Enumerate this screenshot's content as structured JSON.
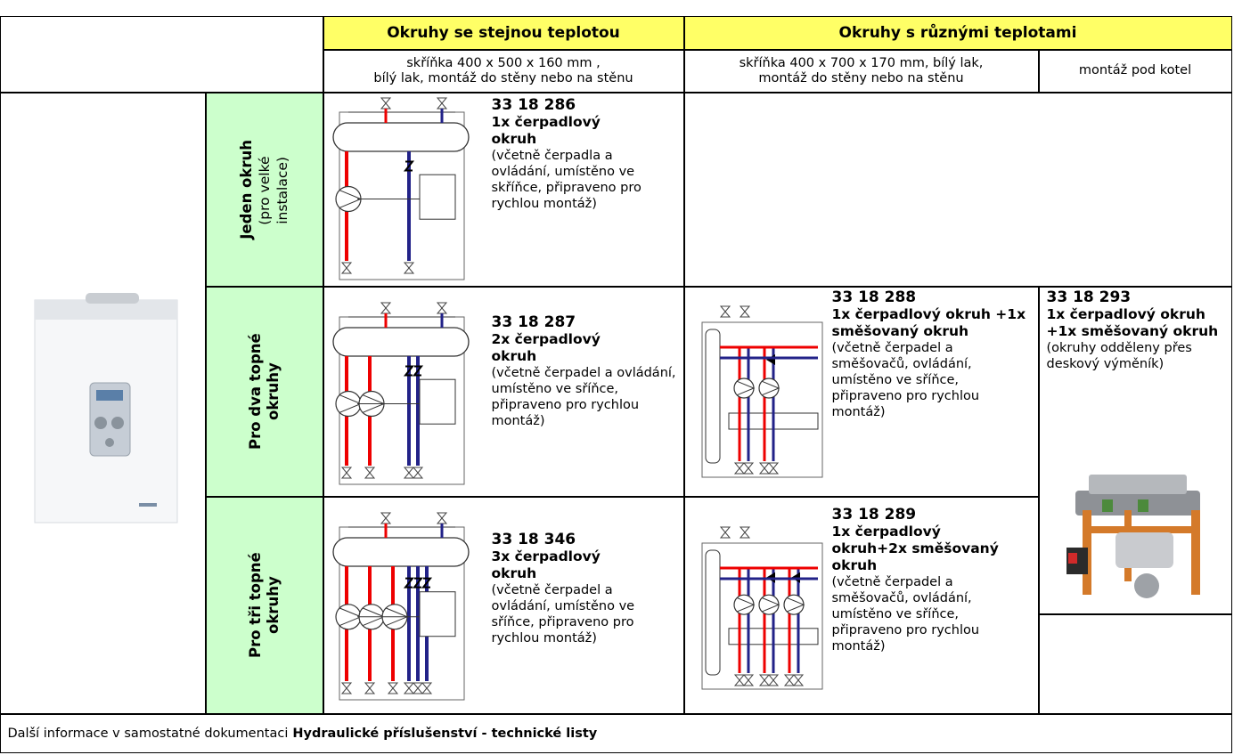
{
  "header": {
    "same_temp": "Okruhy se stejnou teplotou",
    "diff_temp": "Okruhy s různými teplotami",
    "same_temp_note": [
      "skříňka 400 x 500 x 160 mm ,",
      "bílý lak, montáž do stěny nebo na stěnu"
    ],
    "diff_temp_note": [
      "skříňka 400 x 700 x 170 mm, bílý lak,",
      "montáž do stěny nebo na stěnu"
    ],
    "under_boiler_note": "montáž pod kotel"
  },
  "rows": [
    {
      "label": "Jeden okruh",
      "label_note": "(pro velké instalace)",
      "same_temp": {
        "code": "33 18 286",
        "title": "1x čerpadlový okruh",
        "description": "(včetně čerpadla a ovládání, umístěno ve skříňce, připraveno pro rychlou montáž)"
      }
    },
    {
      "label": "Pro dva topné okruhy",
      "same_temp": {
        "code": "33 18 287",
        "title": "2x čerpadlový okruh",
        "description": "(včetně čerpadel a ovládání, umístěno ve sříňce, připraveno pro rychlou montáž)"
      },
      "diff_temp": {
        "code": "33 18 288",
        "title": "1x čerpadlový okruh +1x směšovaný okruh",
        "description": "(včetně čerpadel a směšovačů, ovládání, umístěno ve sříňce, připraveno pro rychlou montáž)"
      }
    },
    {
      "label": "Pro tři topné okruhy",
      "same_temp": {
        "code": "33 18 346",
        "title": "3x čerpadlový okruh",
        "description": "(včetně čerpadel a ovládání, umístěno ve sříňce, připraveno pro rychlou montáž)"
      },
      "diff_temp": {
        "code": "33 18 289",
        "title": "1x čerpadlový okruh+2x směšovaný okruh",
        "description": "(včetně čerpadel a směšovačů, ovládání, umístěno ve sříňce, připraveno pro rychlou montáž)"
      }
    }
  ],
  "under_boiler": {
    "code": "33 18 293",
    "title": "1x čerpadlový okruh +1x směšovaný okruh",
    "description": "(okruhy odděleny přes deskový výměník)"
  },
  "footer": {
    "text": "Další informace v samostatné dokumentaci",
    "link_text": "Hydraulické příslušenství - technické listy"
  }
}
